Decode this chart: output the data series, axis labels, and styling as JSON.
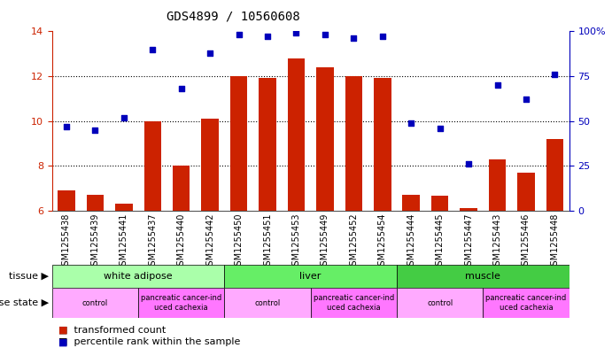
{
  "title": "GDS4899 / 10560608",
  "samples": [
    "GSM1255438",
    "GSM1255439",
    "GSM1255441",
    "GSM1255437",
    "GSM1255440",
    "GSM1255442",
    "GSM1255450",
    "GSM1255451",
    "GSM1255453",
    "GSM1255449",
    "GSM1255452",
    "GSM1255454",
    "GSM1255444",
    "GSM1255445",
    "GSM1255447",
    "GSM1255443",
    "GSM1255446",
    "GSM1255448"
  ],
  "bar_values": [
    6.9,
    6.7,
    6.3,
    10.0,
    8.0,
    10.1,
    12.0,
    11.9,
    12.8,
    12.4,
    12.0,
    11.9,
    6.7,
    6.65,
    6.1,
    8.3,
    7.7,
    9.2
  ],
  "dot_values": [
    47,
    45,
    52,
    90,
    68,
    88,
    98,
    97,
    99,
    98,
    96,
    97,
    49,
    46,
    26,
    70,
    62,
    76
  ],
  "ylim_left": [
    6,
    14
  ],
  "ylim_right": [
    0,
    100
  ],
  "yticks_left": [
    6,
    8,
    10,
    12,
    14
  ],
  "yticks_right": [
    0,
    25,
    50,
    75,
    100
  ],
  "bar_color": "#CC2200",
  "dot_color": "#0000BB",
  "tissue_groups": [
    {
      "label": "white adipose",
      "start": 0,
      "end": 6,
      "color": "#AAFFAA"
    },
    {
      "label": "liver",
      "start": 6,
      "end": 12,
      "color": "#55EE55"
    },
    {
      "label": "muscle",
      "start": 12,
      "end": 18,
      "color": "#33CC33"
    }
  ],
  "disease_groups": [
    {
      "label": "control",
      "start": 0,
      "end": 3,
      "color": "#FFAAFF"
    },
    {
      "label": "pancreatic cancer-ind\nuced cachexia",
      "start": 3,
      "end": 6,
      "color": "#FF77FF"
    },
    {
      "label": "control",
      "start": 6,
      "end": 9,
      "color": "#FFAAFF"
    },
    {
      "label": "pancreatic cancer-ind\nuced cachexia",
      "start": 9,
      "end": 12,
      "color": "#FF77FF"
    },
    {
      "label": "control",
      "start": 12,
      "end": 15,
      "color": "#FFAAFF"
    },
    {
      "label": "pancreatic cancer-ind\nuced cachexia",
      "start": 15,
      "end": 18,
      "color": "#FF77FF"
    }
  ],
  "tissue_label": "tissue",
  "disease_label": "disease state",
  "dotted_gridlines": [
    8,
    10,
    12
  ],
  "bar_width": 0.6,
  "title_fontsize": 10,
  "axis_fontsize": 8,
  "tick_fontsize": 7,
  "label_fontsize": 8,
  "legend_fontsize": 8,
  "xband_color": "#C8C8C8",
  "plot_bg": "#FFFFFF"
}
